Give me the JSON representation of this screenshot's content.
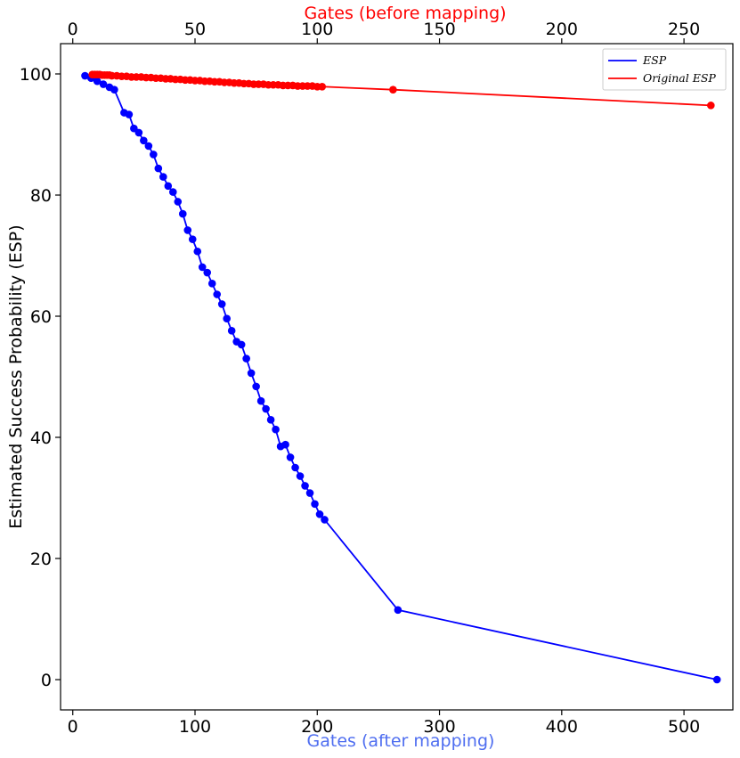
{
  "chart_data": {
    "type": "line",
    "ylabel": "Estimated Success Probability (ESP)",
    "xlabel_bottom": "Gates (after mapping)",
    "xlabel_top": "Gates (before mapping)",
    "xlim_bottom": [
      -10,
      540
    ],
    "xlim_top": [
      -5,
      270
    ],
    "ylim": [
      -5,
      105
    ],
    "xticks_bottom": [
      0,
      100,
      200,
      300,
      400,
      500
    ],
    "xticks_top": [
      0,
      50,
      100,
      150,
      200,
      250
    ],
    "yticks": [
      0,
      20,
      40,
      60,
      80,
      100
    ],
    "colors": {
      "esp": "#0000ff",
      "original_esp": "#ff0000",
      "xlabel_bottom": "#4f6ef0",
      "xlabel_top": "#ff0000"
    },
    "legend": {
      "position": "top-right",
      "entries": [
        "ESP",
        "Original ESP"
      ]
    },
    "series": [
      {
        "name": "ESP",
        "axis": "bottom",
        "x": [
          10,
          15,
          20,
          25,
          30,
          34,
          42,
          46,
          50,
          54,
          58,
          62,
          66,
          70,
          74,
          78,
          82,
          86,
          90,
          94,
          98,
          102,
          106,
          110,
          114,
          118,
          122,
          126,
          130,
          134,
          138,
          142,
          146,
          150,
          154,
          158,
          162,
          166,
          170,
          174,
          178,
          182,
          186,
          190,
          194,
          198,
          202,
          206,
          266,
          527
        ],
        "y": [
          99.7,
          99.3,
          98.8,
          98.3,
          97.8,
          97.4,
          93.6,
          93.3,
          91.0,
          90.3,
          89.0,
          88.1,
          86.7,
          84.4,
          83.0,
          81.5,
          80.5,
          78.9,
          76.9,
          74.2,
          72.7,
          70.7,
          68.1,
          67.2,
          65.4,
          63.6,
          62.0,
          59.6,
          57.6,
          55.8,
          55.3,
          53.0,
          50.6,
          48.4,
          46.0,
          44.7,
          42.9,
          41.3,
          38.5,
          38.8,
          36.7,
          35.0,
          33.6,
          32.0,
          30.8,
          29.0,
          27.3,
          26.4,
          11.5,
          0.0
        ]
      },
      {
        "name": "Original ESP",
        "axis": "top",
        "x": [
          8,
          9,
          10,
          11,
          12,
          13,
          14,
          15,
          16,
          18,
          20,
          22,
          24,
          26,
          28,
          30,
          32,
          34,
          36,
          38,
          40,
          42,
          44,
          46,
          48,
          50,
          52,
          54,
          56,
          58,
          60,
          62,
          64,
          66,
          68,
          70,
          72,
          74,
          76,
          78,
          80,
          82,
          84,
          86,
          88,
          90,
          92,
          94,
          96,
          98,
          100,
          102,
          131,
          261
        ],
        "y": [
          99.9,
          99.9,
          99.9,
          99.9,
          99.8,
          99.8,
          99.8,
          99.8,
          99.7,
          99.7,
          99.6,
          99.6,
          99.5,
          99.5,
          99.5,
          99.4,
          99.4,
          99.3,
          99.3,
          99.2,
          99.2,
          99.1,
          99.1,
          99.0,
          99.0,
          98.9,
          98.9,
          98.8,
          98.8,
          98.7,
          98.7,
          98.6,
          98.6,
          98.5,
          98.5,
          98.4,
          98.4,
          98.3,
          98.3,
          98.3,
          98.2,
          98.2,
          98.2,
          98.1,
          98.1,
          98.1,
          98.0,
          98.0,
          98.0,
          98.0,
          97.9,
          97.9,
          97.4,
          94.8
        ]
      }
    ]
  }
}
